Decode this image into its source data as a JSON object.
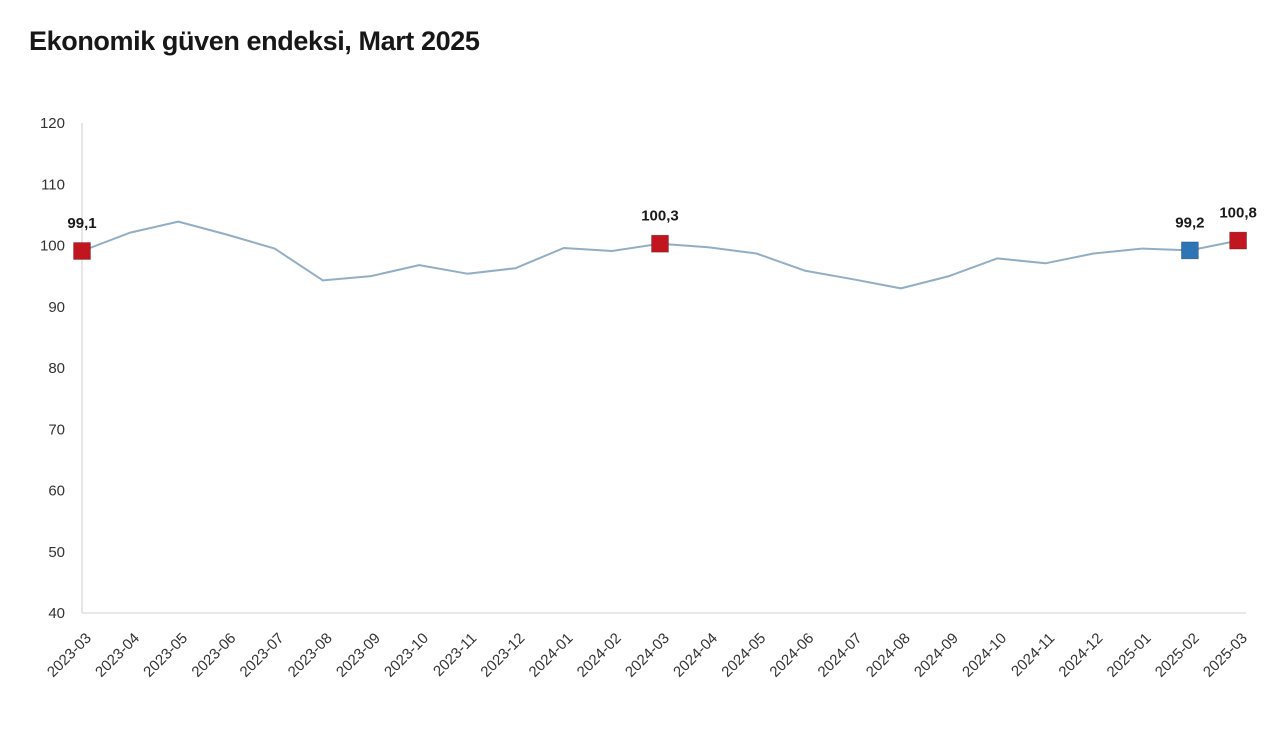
{
  "title": "Ekonomik güven endeksi, Mart 2025",
  "chart_data": {
    "type": "line",
    "title": "Ekonomik güven endeksi, Mart 2025",
    "x": [
      "2023-03",
      "2023-04",
      "2023-05",
      "2023-06",
      "2023-07",
      "2023-08",
      "2023-09",
      "2023-10",
      "2023-11",
      "2023-12",
      "2024-01",
      "2024-02",
      "2024-03",
      "2024-04",
      "2024-05",
      "2024-06",
      "2024-07",
      "2024-08",
      "2024-09",
      "2024-10",
      "2024-11",
      "2024-12",
      "2025-01",
      "2025-02",
      "2025-03"
    ],
    "series": [
      {
        "name": "Ekonomik güven endeksi",
        "values": [
          99.1,
          102.1,
          103.9,
          101.8,
          99.5,
          94.3,
          95.0,
          96.8,
          95.4,
          96.3,
          99.6,
          99.1,
          100.3,
          99.7,
          98.7,
          95.9,
          94.5,
          93.0,
          95.0,
          97.9,
          97.1,
          98.7,
          99.5,
          99.2,
          100.8
        ]
      }
    ],
    "ylim": [
      40,
      120
    ],
    "yticks": [
      40,
      50,
      60,
      70,
      80,
      90,
      100,
      110,
      120
    ],
    "xlabel": "",
    "ylabel": "",
    "grid": false,
    "legend": false,
    "annotations": [
      {
        "x": "2023-03",
        "value": 99.1,
        "label": "99,1",
        "marker": "square",
        "color": "#c1161f"
      },
      {
        "x": "2024-03",
        "value": 100.3,
        "label": "100,3",
        "marker": "square",
        "color": "#c1161f"
      },
      {
        "x": "2025-02",
        "value": 99.2,
        "label": "99,2",
        "marker": "square",
        "color": "#2e75b6"
      },
      {
        "x": "2025-03",
        "value": 100.8,
        "label": "100,8",
        "marker": "square",
        "color": "#c1161f"
      }
    ],
    "colors": {
      "line": "#92aec4",
      "marker_primary": "#c1161f",
      "marker_secondary": "#2e75b6",
      "axis": "#d9d9d9",
      "tick_text": "#333333",
      "label_text": "#1a1a1a"
    }
  }
}
